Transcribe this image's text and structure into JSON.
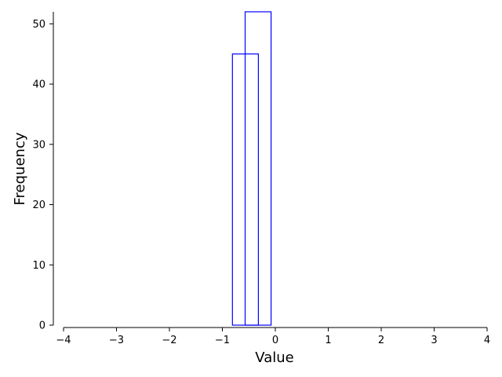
{
  "chart_data": {
    "type": "bar",
    "subtype": "histogram-step-outline",
    "xlabel": "Value",
    "ylabel": "Frequency",
    "xlim": [
      -4,
      4
    ],
    "ylim": [
      0,
      52
    ],
    "x_ticks": [
      -4,
      -3,
      -2,
      -1,
      0,
      1,
      2,
      3,
      4
    ],
    "y_ticks": [
      0,
      10,
      20,
      30,
      40,
      50
    ],
    "x_tick_labels": [
      "−4",
      "−3",
      "−2",
      "−1",
      "0",
      "1",
      "2",
      "3",
      "4"
    ],
    "y_tick_labels": [
      "0",
      "10",
      "20",
      "30",
      "40",
      "50"
    ],
    "grid": false,
    "legend": "none",
    "bar_color": "#0000ff",
    "series": [
      {
        "bins": [
          {
            "x0": -1.05,
            "x1": -0.81,
            "count": 0
          },
          {
            "x0": -0.81,
            "x1": -0.32,
            "count": 45
          },
          {
            "x0": -0.32,
            "x1": 1.95,
            "count": 0
          }
        ]
      },
      {
        "bins": [
          {
            "x0": -1.05,
            "x1": -0.57,
            "count": 0
          },
          {
            "x0": -0.57,
            "x1": -0.08,
            "count": 52
          },
          {
            "x0": -0.08,
            "x1": 1.95,
            "count": 0
          }
        ]
      }
    ]
  }
}
